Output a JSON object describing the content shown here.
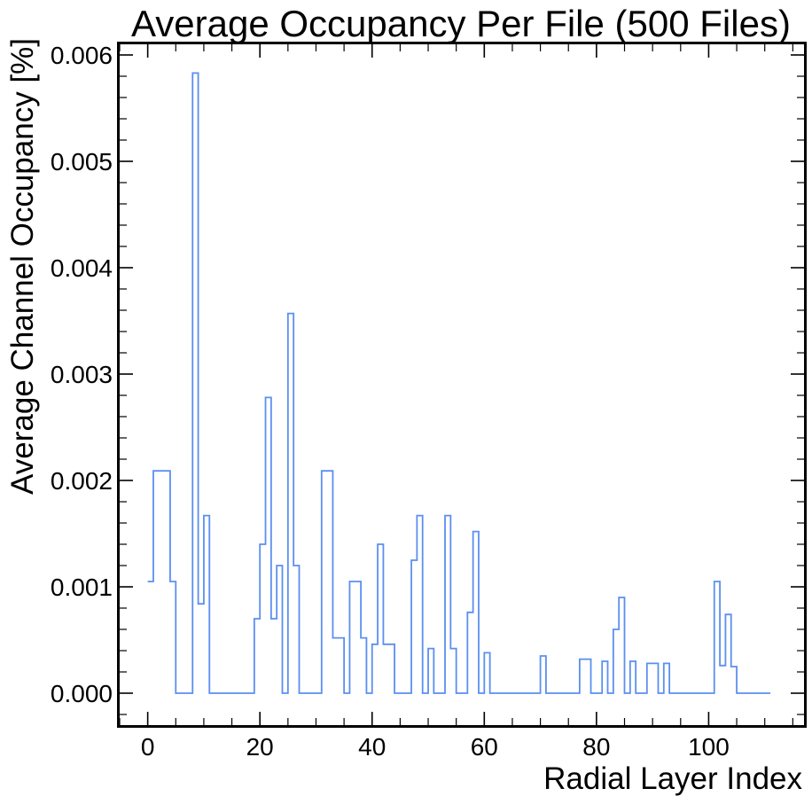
{
  "chart_data": {
    "type": "line",
    "title": "Average Occupancy Per File (500 Files)",
    "xlabel": "Radial Layer Index",
    "ylabel": "Average Channel Occupancy [%]",
    "xlim": [
      -5,
      117
    ],
    "ylim": [
      -0.0003,
      0.0061
    ],
    "x_ticks": [
      0,
      20,
      40,
      60,
      80,
      100
    ],
    "x_tick_labels": [
      "0",
      "20",
      "40",
      "60",
      "80",
      "100"
    ],
    "y_ticks": [
      0.0,
      0.001,
      0.002,
      0.003,
      0.004,
      0.005,
      0.006
    ],
    "y_tick_labels": [
      "0.000",
      "0.001",
      "0.002",
      "0.003",
      "0.004",
      "0.005",
      "0.006"
    ],
    "grid": false,
    "line_color": "#5b8ff0",
    "series": [
      {
        "style": "step",
        "bin_edges": [
          0,
          1,
          2,
          3,
          4,
          5,
          6,
          7,
          8,
          9,
          10,
          11,
          12,
          13,
          14,
          15,
          16,
          17,
          18,
          19,
          20,
          21,
          22,
          23,
          24,
          25,
          26,
          27,
          28,
          29,
          30,
          31,
          32,
          33,
          34,
          35,
          36,
          37,
          38,
          39,
          40,
          41,
          42,
          43,
          44,
          45,
          46,
          47,
          48,
          49,
          50,
          51,
          52,
          53,
          54,
          55,
          56,
          57,
          58,
          59,
          60,
          61,
          62,
          63,
          64,
          65,
          66,
          67,
          68,
          69,
          70,
          71,
          72,
          73,
          74,
          75,
          76,
          77,
          78,
          79,
          80,
          81,
          82,
          83,
          84,
          85,
          86,
          87,
          88,
          89,
          90,
          91,
          92,
          93,
          94,
          95,
          96,
          97,
          98,
          99,
          100,
          101,
          102,
          103,
          104,
          105,
          106,
          107,
          108,
          109,
          110,
          111
        ],
        "values": [
          0.00105,
          0.00209,
          0.00209,
          0.00209,
          0.00105,
          0,
          0,
          0,
          0.00583,
          0.00084,
          0.00167,
          0,
          0,
          0,
          0,
          0,
          0,
          0,
          0,
          0.0007,
          0.0014,
          0.00278,
          0.0007,
          0.0012,
          0,
          0.00357,
          0.0012,
          0,
          0,
          0,
          0,
          0.00209,
          0.00209,
          0.00052,
          0.00052,
          0,
          0.00105,
          0.00105,
          0.00052,
          0,
          0.00046,
          0.0014,
          0.00046,
          0.00046,
          0,
          0,
          0,
          0.00125,
          0.00167,
          0,
          0.00042,
          0,
          0,
          0.00167,
          0.00042,
          0,
          0,
          0.00076,
          0.00152,
          0,
          0.00038,
          0,
          0,
          0,
          0,
          0,
          0,
          0,
          0,
          0,
          0.00035,
          0,
          0,
          0,
          0,
          0,
          0,
          0.00032,
          0.00032,
          0,
          0,
          0.0003,
          0,
          0.0006,
          0.0009,
          0,
          0.0003,
          0,
          0,
          0.00028,
          0.00028,
          0,
          0.00028,
          0,
          0,
          0,
          0,
          0,
          0,
          0,
          0,
          0.00105,
          0.00026,
          0.00074,
          0.00025,
          0,
          0,
          0,
          0,
          0,
          0
        ]
      }
    ]
  }
}
